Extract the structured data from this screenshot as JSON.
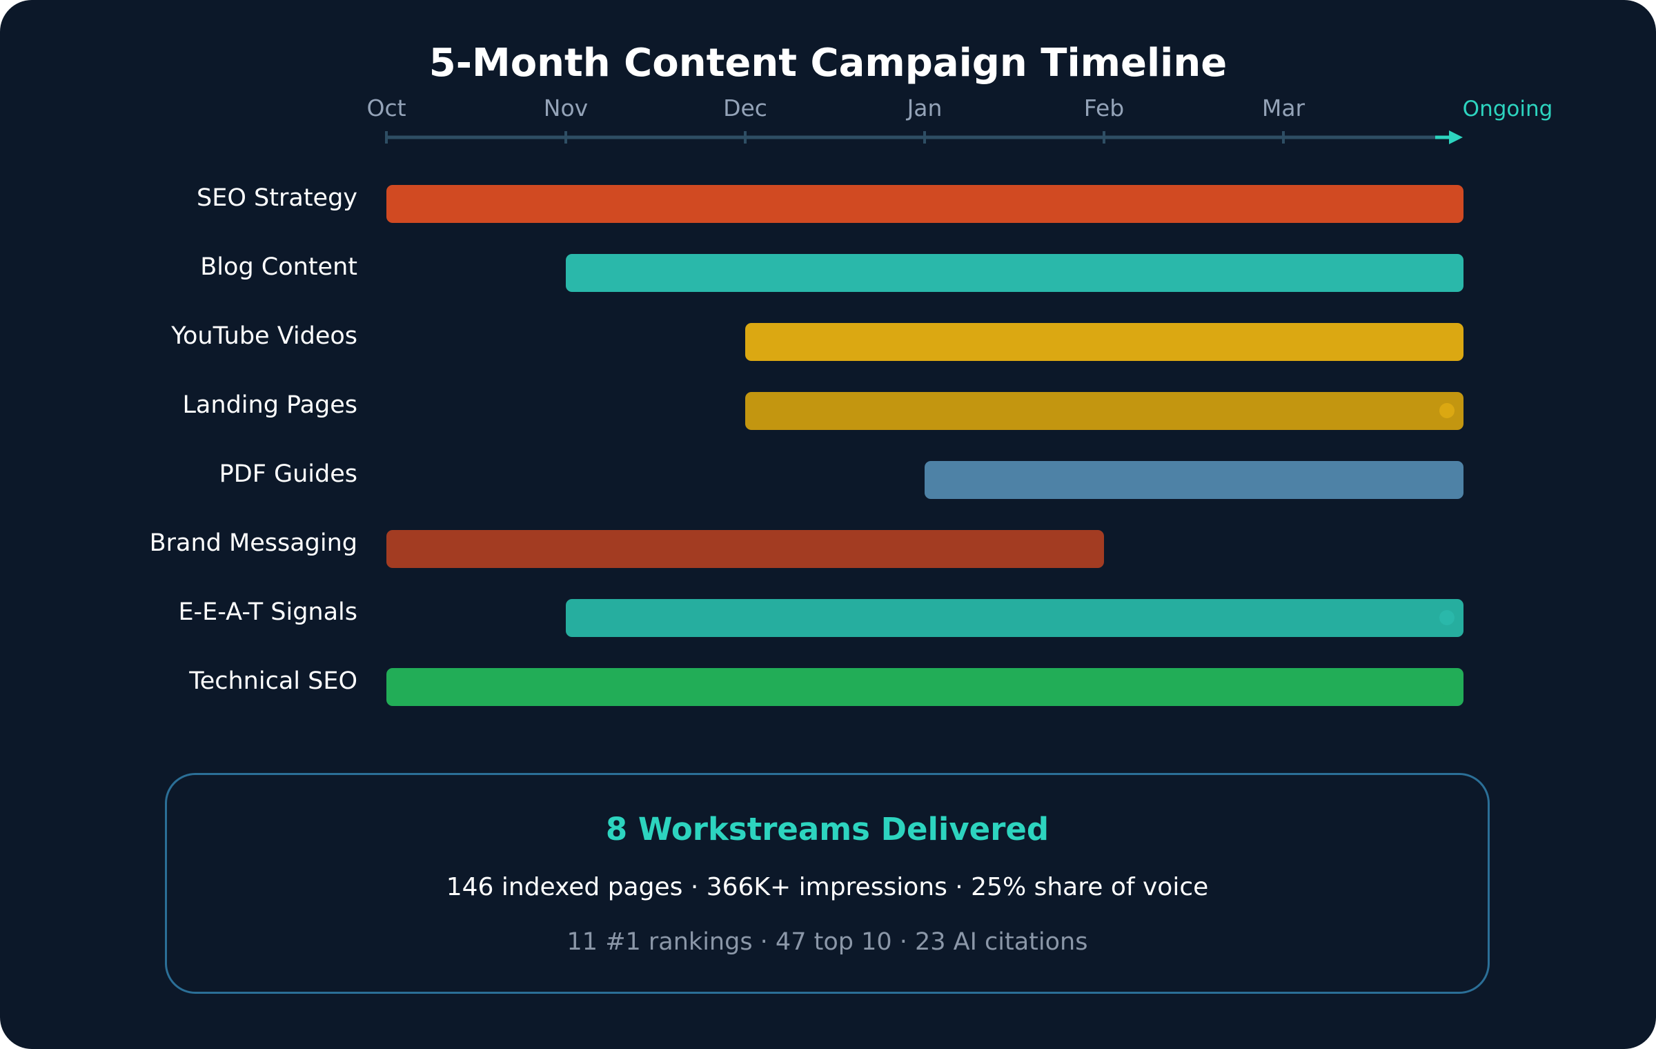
{
  "chart_data": {
    "type": "gantt",
    "title": "5-Month Content Campaign Timeline",
    "months": [
      "Oct",
      "Nov",
      "Dec",
      "Jan",
      "Feb",
      "Mar"
    ],
    "end_label": "Ongoing",
    "tasks": [
      {
        "name": "SEO Strategy",
        "start": "Oct",
        "end": "Ongoing",
        "ongoing": true,
        "color": "#d14a22"
      },
      {
        "name": "Blog Content",
        "start": "Nov",
        "end": "Ongoing",
        "ongoing": true,
        "color": "#2ab8aa"
      },
      {
        "name": "YouTube Videos",
        "start": "Dec",
        "end": "Ongoing",
        "ongoing": true,
        "color": "#dba812"
      },
      {
        "name": "Landing Pages",
        "start": "Dec",
        "end": "Ongoing",
        "ongoing": true,
        "color": "#c39610",
        "dot_color": "#dba812"
      },
      {
        "name": "PDF Guides",
        "start": "Jan",
        "end": "Ongoing",
        "ongoing": true,
        "color": "#4e82a6"
      },
      {
        "name": "Brand Messaging",
        "start": "Oct",
        "end": "Feb",
        "ongoing": false,
        "color": "#a33c22"
      },
      {
        "name": "E-E-A-T Signals",
        "start": "Nov",
        "end": "Ongoing",
        "ongoing": true,
        "color": "#26ae9f",
        "dot_color": "#2ab8aa"
      },
      {
        "name": "Technical SEO",
        "start": "Oct",
        "end": "Ongoing",
        "ongoing": true,
        "color": "#22ad57"
      }
    ],
    "axis_color": "#2e4e64",
    "arrow_color": "#2dd4bf"
  },
  "summary": {
    "title": "8 Workstreams Delivered",
    "line1": "146 indexed pages · 366K+ impressions · 25% share of voice",
    "line2": "11 #1 rankings · 47 top 10 · 23 AI citations"
  }
}
